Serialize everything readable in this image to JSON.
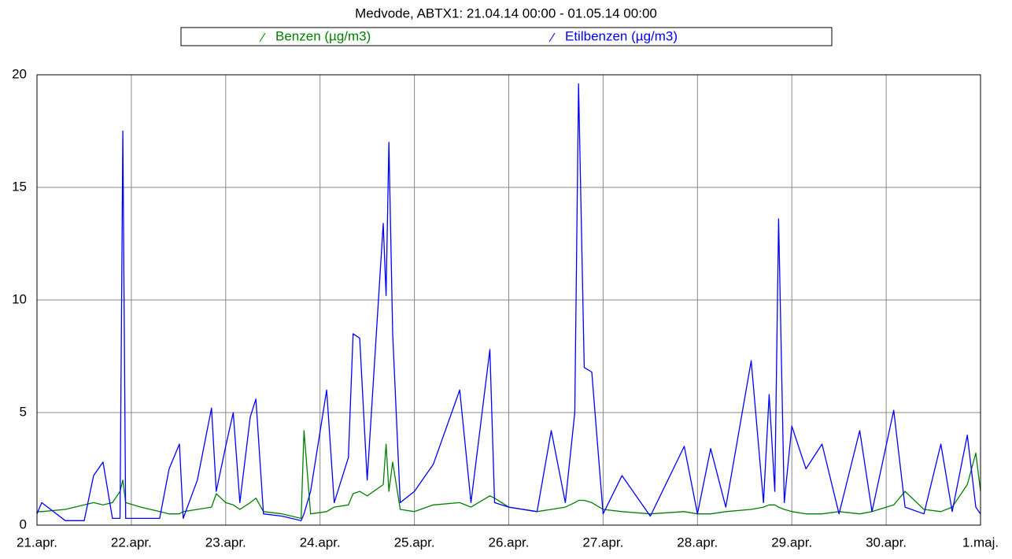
{
  "chart_data": {
    "type": "line",
    "title": "Medvode, ABTX1: 21.04.14 00:00 - 01.05.14 00:00",
    "x": [
      0,
      0.05,
      0.3,
      0.5,
      0.6,
      0.7,
      0.8,
      0.88,
      0.91,
      0.94,
      1.1,
      1.3,
      1.4,
      1.51,
      1.55,
      1.7,
      1.85,
      1.9,
      2.0,
      2.08,
      2.15,
      2.26,
      2.32,
      2.4,
      2.6,
      2.8,
      2.83,
      2.9,
      3.07,
      3.15,
      3.3,
      3.35,
      3.42,
      3.5,
      3.67,
      3.7,
      3.73,
      3.77,
      3.85,
      4.0,
      4.2,
      4.48,
      4.6,
      4.8,
      4.85,
      5.0,
      5.3,
      5.45,
      5.6,
      5.7,
      5.74,
      5.8,
      5.88,
      6.0,
      6.2,
      6.5,
      6.86,
      7.0,
      7.14,
      7.3,
      7.57,
      7.7,
      7.76,
      7.82,
      7.86,
      7.92,
      8.0,
      8.15,
      8.32,
      8.5,
      8.72,
      8.85,
      9.08,
      9.2,
      9.4,
      9.58,
      9.7,
      9.86,
      9.95,
      10
    ],
    "series": [
      {
        "name": "Benzen (µg/m3)",
        "color": "#008000",
        "values": [
          0.6,
          0.6,
          0.7,
          0.9,
          1.0,
          0.9,
          1.0,
          1.5,
          2.0,
          1.0,
          0.8,
          0.6,
          0.5,
          0.5,
          0.6,
          0.7,
          0.8,
          1.4,
          1.0,
          0.9,
          0.7,
          1.0,
          1.2,
          0.6,
          0.5,
          0.3,
          4.2,
          0.5,
          0.6,
          0.8,
          0.9,
          1.4,
          1.5,
          1.3,
          1.8,
          3.6,
          1.5,
          2.8,
          0.7,
          0.6,
          0.9,
          1.0,
          0.8,
          1.3,
          1.2,
          0.8,
          0.6,
          0.7,
          0.8,
          1.0,
          1.1,
          1.1,
          1.0,
          0.7,
          0.6,
          0.5,
          0.6,
          0.5,
          0.5,
          0.6,
          0.7,
          0.8,
          0.9,
          0.9,
          0.8,
          0.7,
          0.6,
          0.5,
          0.5,
          0.6,
          0.5,
          0.6,
          0.9,
          1.5,
          0.7,
          0.6,
          0.8,
          1.8,
          3.2,
          1.5
        ]
      },
      {
        "name": "Etilbenzen (µg/m3)",
        "color": "#0000ff",
        "values": [
          0.5,
          1.0,
          0.2,
          0.2,
          2.2,
          2.8,
          0.3,
          0.3,
          17.5,
          0.3,
          0.3,
          0.3,
          2.5,
          3.6,
          0.3,
          2.0,
          5.2,
          1.5,
          3.5,
          5.0,
          1.0,
          4.8,
          5.6,
          0.5,
          0.4,
          0.2,
          0.5,
          1.5,
          6.0,
          1.0,
          3.0,
          8.5,
          8.3,
          2.0,
          13.4,
          10.2,
          17.0,
          8.5,
          1.0,
          1.5,
          2.7,
          6.0,
          1.0,
          7.8,
          1.0,
          0.8,
          0.6,
          4.2,
          1.0,
          5.0,
          19.6,
          7.0,
          6.8,
          0.5,
          2.2,
          0.4,
          3.5,
          0.5,
          3.4,
          0.8,
          7.3,
          1.0,
          5.8,
          1.5,
          13.6,
          1.0,
          4.4,
          2.5,
          3.6,
          0.5,
          4.2,
          0.6,
          5.1,
          0.8,
          0.5,
          3.6,
          0.6,
          4.0,
          0.8,
          0.5
        ]
      }
    ],
    "xlim": [
      0,
      10
    ],
    "xticks": [
      {
        "value": 0,
        "label": "21.apr."
      },
      {
        "value": 1,
        "label": "22.apr."
      },
      {
        "value": 2,
        "label": "23.apr."
      },
      {
        "value": 3,
        "label": "24.apr."
      },
      {
        "value": 4,
        "label": "25.apr."
      },
      {
        "value": 5,
        "label": "26.apr."
      },
      {
        "value": 6,
        "label": "27.apr."
      },
      {
        "value": 7,
        "label": "28.apr."
      },
      {
        "value": 8,
        "label": "29.apr."
      },
      {
        "value": 9,
        "label": "30.apr."
      },
      {
        "value": 10,
        "label": "1.maj."
      }
    ],
    "ylim": [
      0,
      20
    ],
    "yticks": [
      0,
      5,
      10,
      15,
      20
    ],
    "grid": true
  }
}
